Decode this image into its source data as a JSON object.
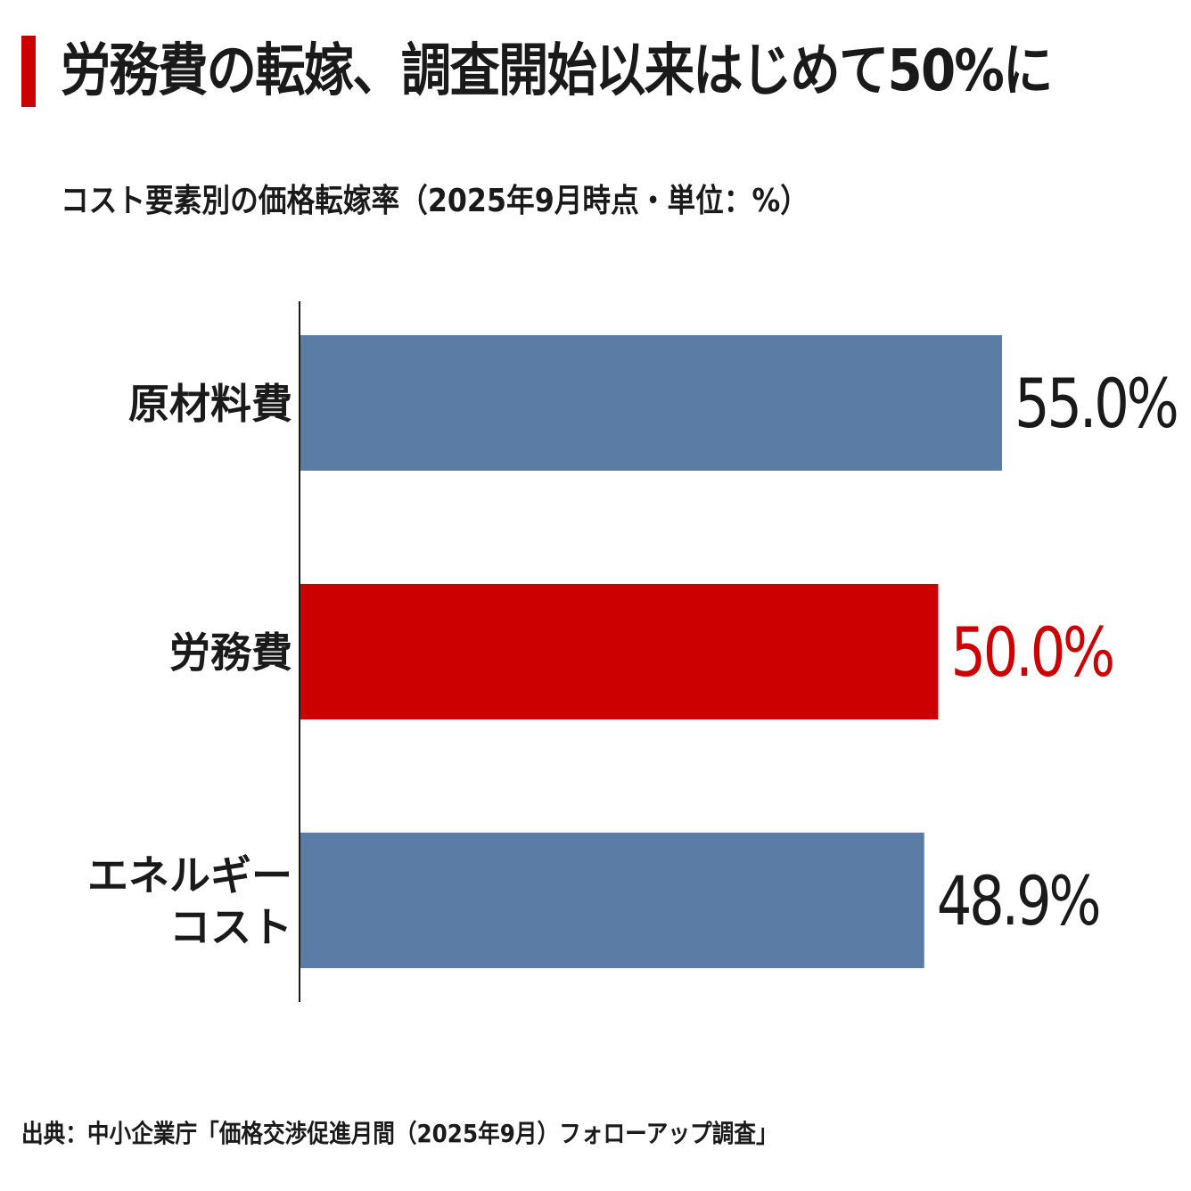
{
  "title": "労務費の転嫁、調査開始以来はじめて50%に",
  "source": "出典：中小企業庁「価格交渉促進月間（2025年9月）フォローアップ調査」",
  "chart_data": {
    "type": "bar",
    "orientation": "horizontal",
    "title": "コスト要素別の価格転嫁率（2025年9月時点・単位：%）",
    "categories": [
      [
        "原材料費"
      ],
      [
        "労務費"
      ],
      [
        "エネルギー",
        "コスト"
      ]
    ],
    "values": [
      55.0,
      50.0,
      48.9
    ],
    "value_labels": [
      "55.0%",
      "50.0%",
      "48.9%"
    ],
    "highlight_index": 1,
    "xlim": [
      0,
      55.0
    ],
    "grid": false,
    "colors": {
      "default_bar": "#5b7ca4",
      "highlight_bar": "#cc0000",
      "default_label": "#1a1a1a",
      "highlight_label": "#cc0000",
      "axis": "#1a1a1a",
      "title_accent": "#cc0000"
    }
  }
}
